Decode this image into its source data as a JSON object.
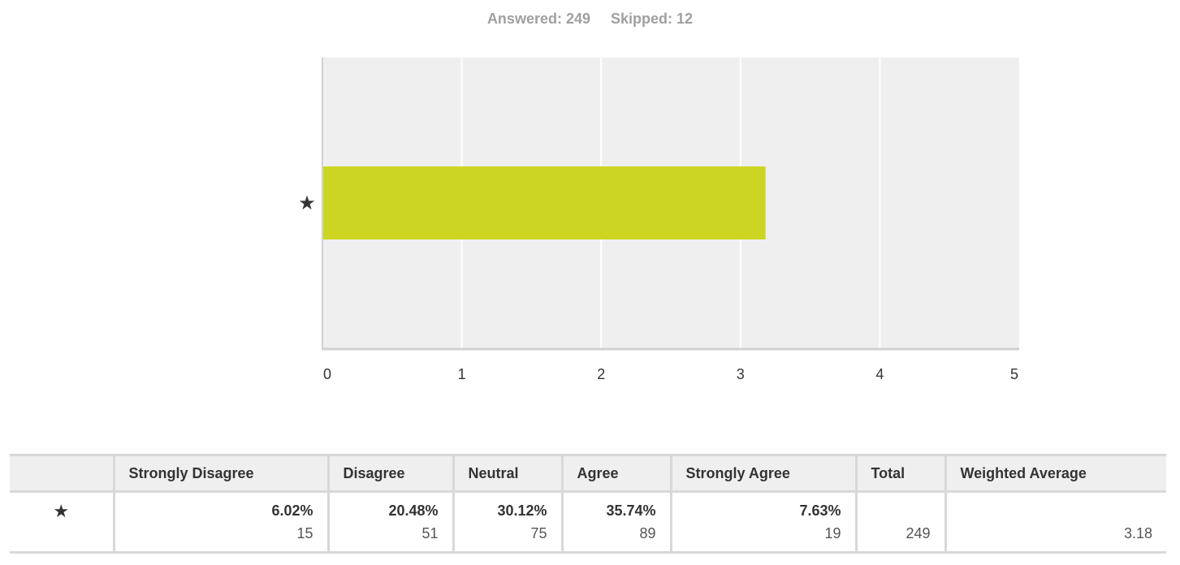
{
  "summary": {
    "answered": "Answered: 249",
    "skipped": "Skipped: 12"
  },
  "chart_data": {
    "type": "bar",
    "orientation": "horizontal",
    "categories": [
      "★"
    ],
    "values": [
      3.18
    ],
    "xlim": [
      0,
      5
    ],
    "xticks": [
      "0",
      "1",
      "2",
      "3",
      "4",
      "5"
    ],
    "grid": true,
    "bar_color": "#cdd523",
    "plot_bg": "#efefef",
    "title": "",
    "xlabel": "",
    "ylabel": ""
  },
  "table": {
    "headers": [
      "",
      "Strongly Disagree",
      "Disagree",
      "Neutral",
      "Agree",
      "Strongly Agree",
      "Total",
      "Weighted Average"
    ],
    "row": {
      "label": "★",
      "cells": [
        {
          "pct": "6.02%",
          "count": "15"
        },
        {
          "pct": "20.48%",
          "count": "51"
        },
        {
          "pct": "30.12%",
          "count": "75"
        },
        {
          "pct": "35.74%",
          "count": "89"
        },
        {
          "pct": "7.63%",
          "count": "19"
        },
        {
          "pct": "",
          "count": "249"
        },
        {
          "pct": "",
          "count": "3.18"
        }
      ]
    }
  }
}
